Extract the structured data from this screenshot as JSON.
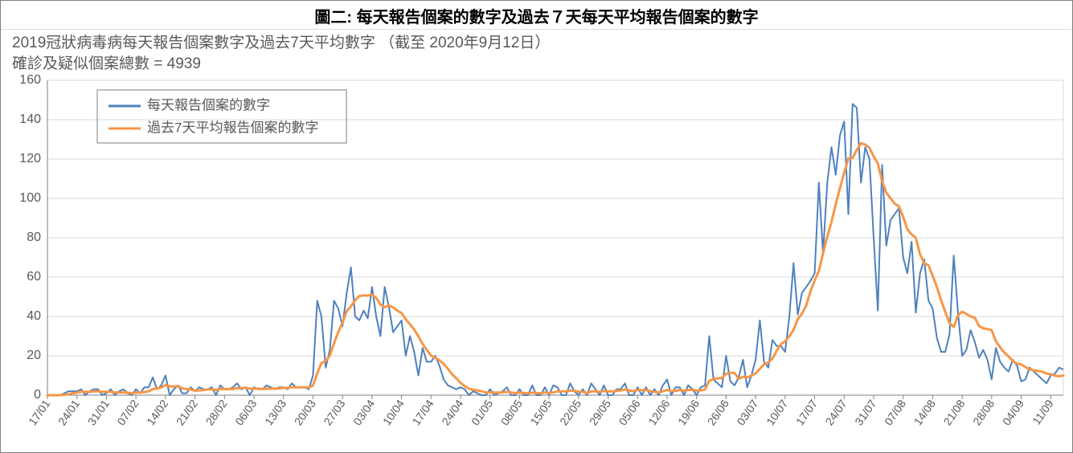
{
  "title": "圖二: 每天報告個案的數字及過去７天每天平均報告個案的數字",
  "subtitle_line1": "2019冠狀病毒病每天報告個案數字及過去7天平均數字 （截至 2020年9月12日）",
  "subtitle_line2": "確診及疑似個案總數 = 4939",
  "legend": {
    "series1_label": "每天報告個案的數字",
    "series2_label": "過去7天平均報告個案的數字"
  },
  "chart": {
    "type": "line",
    "background_color": "#ffffff",
    "grid_color": "#d9d9d9",
    "axis_color": "#7f7f7f",
    "tick_label_color": "#595959",
    "series1_color": "#4f81bd",
    "series2_color": "#f79646",
    "line_width_daily": 2,
    "line_width_avg": 3,
    "ylim": [
      0,
      160
    ],
    "ytick_step": 20,
    "yticks": [
      0,
      20,
      40,
      60,
      80,
      100,
      120,
      140,
      160
    ],
    "x_labels": [
      "17/01",
      "24/01",
      "31/01",
      "07/02",
      "14/02",
      "21/02",
      "28/02",
      "06/03",
      "13/03",
      "20/03",
      "27/03",
      "03/04",
      "10/04",
      "17/04",
      "24/04",
      "01/05",
      "08/05",
      "15/05",
      "22/05",
      "29/05",
      "05/06",
      "12/06",
      "19/06",
      "26/06",
      "03/07",
      "10/07",
      "17/07",
      "24/07",
      "31/07",
      "07/08",
      "14/08",
      "21/08",
      "28/08",
      "04/09",
      "11/09"
    ],
    "x_label_step_days": 7,
    "daily": [
      0,
      0,
      0,
      0,
      1,
      2,
      2,
      2,
      3,
      0,
      2,
      3,
      3,
      0,
      1,
      3,
      0,
      2,
      3,
      1,
      0,
      3,
      1,
      4,
      4,
      9,
      3,
      5,
      10,
      0,
      3,
      5,
      1,
      1,
      4,
      2,
      4,
      3,
      3,
      4,
      0,
      5,
      3,
      3,
      4,
      6,
      3,
      4,
      0,
      4,
      3,
      3,
      5,
      4,
      3,
      4,
      4,
      3,
      6,
      4,
      4,
      4,
      3,
      10,
      48,
      40,
      14,
      23,
      48,
      44,
      35,
      52,
      65,
      40,
      38,
      43,
      39,
      55,
      40,
      30,
      55,
      45,
      32,
      35,
      38,
      20,
      30,
      22,
      10,
      24,
      17,
      17,
      20,
      15,
      8,
      5,
      4,
      3,
      4,
      3,
      0,
      2,
      1,
      0,
      0,
      3,
      0,
      1,
      2,
      4,
      0,
      0,
      3,
      0,
      0,
      5,
      0,
      0,
      4,
      0,
      5,
      4,
      0,
      0,
      6,
      2,
      0,
      3,
      0,
      6,
      3,
      0,
      5,
      0,
      0,
      3,
      3,
      6,
      0,
      0,
      4,
      0,
      4,
      0,
      3,
      0,
      5,
      8,
      0,
      4,
      4,
      0,
      5,
      3,
      0,
      4,
      5,
      30,
      8,
      6,
      4,
      20,
      7,
      5,
      9,
      18,
      4,
      10,
      18,
      38,
      17,
      14,
      28,
      25,
      25,
      22,
      40,
      67,
      41,
      52,
      55,
      58,
      62,
      108,
      72,
      108,
      126,
      112,
      132,
      139,
      92,
      148,
      146,
      108,
      126,
      120,
      80,
      43,
      117,
      76,
      89,
      92,
      95,
      70,
      62,
      78,
      42,
      62,
      69,
      48,
      44,
      29,
      22,
      22,
      31,
      71,
      42,
      20,
      23,
      33,
      27,
      19,
      23,
      18,
      8,
      24,
      17,
      14,
      12,
      18,
      15,
      7,
      8,
      14,
      12,
      10,
      8,
      6,
      10,
      11,
      14,
      13
    ],
    "avg7": [
      0,
      0,
      0,
      0,
      0.2,
      0.5,
      1.0,
      1.3,
      1.7,
      1.7,
      1.7,
      1.9,
      2.0,
      1.7,
      1.7,
      1.7,
      1.4,
      1.4,
      1.4,
      1.3,
      1.0,
      1.3,
      1.3,
      1.6,
      1.9,
      3.1,
      3.4,
      3.9,
      5.1,
      4.5,
      4.4,
      4.6,
      3.4,
      3.1,
      2.9,
      2.3,
      2.4,
      2.6,
      2.9,
      2.9,
      2.7,
      3.1,
      3.1,
      3.1,
      3.1,
      3.6,
      3.6,
      3.7,
      3.3,
      3.3,
      3.3,
      3.1,
      3.3,
      3.3,
      3.4,
      3.4,
      3.7,
      3.7,
      4.0,
      4.0,
      4.0,
      4.0,
      3.9,
      4.9,
      11.1,
      16.3,
      17.4,
      20.1,
      26.4,
      32.1,
      36.7,
      42.7,
      45.1,
      48.3,
      50.4,
      50.7,
      50.6,
      51.1,
      49.4,
      46.1,
      44.7,
      45.6,
      44.6,
      43.0,
      41.7,
      38.6,
      36.0,
      33.4,
      29.9,
      26.0,
      23.0,
      20.1,
      19.0,
      17.7,
      15.9,
      13.4,
      10.6,
      8.6,
      6.3,
      4.6,
      3.3,
      2.7,
      2.4,
      2.0,
      1.4,
      1.4,
      1.4,
      1.3,
      1.4,
      1.7,
      1.4,
      1.1,
      1.4,
      1.1,
      0.9,
      1.3,
      1.1,
      0.9,
      1.4,
      1.1,
      1.4,
      1.9,
      1.9,
      1.9,
      2.3,
      2.3,
      1.7,
      1.7,
      1.1,
      1.9,
      2.0,
      1.7,
      2.1,
      1.9,
      1.9,
      2.1,
      2.4,
      2.9,
      2.4,
      2.0,
      2.6,
      2.6,
      2.6,
      2.1,
      1.7,
      1.4,
      2.0,
      2.7,
      2.1,
      2.1,
      2.7,
      2.3,
      2.6,
      2.7,
      2.3,
      2.4,
      2.9,
      7.3,
      8.1,
      8.6,
      8.7,
      10.9,
      11.3,
      11.3,
      8.3,
      9.4,
      9.0,
      9.9,
      11.1,
      13.4,
      15.7,
      16.7,
      18.6,
      22.6,
      25.9,
      27.3,
      30.0,
      33.1,
      38.7,
      41.4,
      45.6,
      52.7,
      58.3,
      63.1,
      72.1,
      80.6,
      88.0,
      97.0,
      105.1,
      113.0,
      120.3,
      120.6,
      124.6,
      128.0,
      127.4,
      125.7,
      121.3,
      117.7,
      108.7,
      103.0,
      100.0,
      97.3,
      96.0,
      90.6,
      84.3,
      81.7,
      80.0,
      71.6,
      67.1,
      66.0,
      60.7,
      55.0,
      48.3,
      42.3,
      36.6,
      34.7,
      40.6,
      42.4,
      41.3,
      40.0,
      39.4,
      35.1,
      34.0,
      33.6,
      33.0,
      27.4,
      24.3,
      21.6,
      19.7,
      17.4,
      16.0,
      15.6,
      14.3,
      13.1,
      12.6,
      12.3,
      11.9,
      11.0,
      10.6,
      9.9,
      9.6,
      10.0,
      10.4,
      10.3
    ],
    "title_fontsize": 20,
    "subtitle_fontsize": 19,
    "legend_fontsize": 17,
    "axis_fontsize": 16,
    "legend_position": "top-left-inside"
  }
}
